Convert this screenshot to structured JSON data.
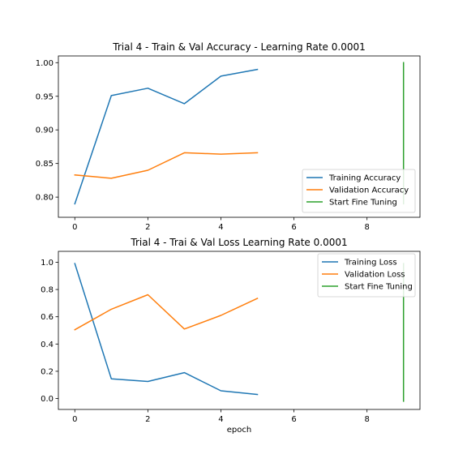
{
  "chart_data": [
    {
      "type": "line",
      "title": "Trial 4 - Train & Val Accuracy - Learning Rate 0.0001",
      "xlabel": "",
      "ylabel": "",
      "xlim": [
        -0.45,
        9.45
      ],
      "ylim": [
        0.77,
        1.01
      ],
      "xticks": [
        0,
        2,
        4,
        6,
        8
      ],
      "yticks": [
        0.8,
        0.85,
        0.9,
        0.95,
        1.0
      ],
      "ytick_labels": [
        "0.80",
        "0.85",
        "0.90",
        "0.95",
        "1.00"
      ],
      "grid": false,
      "legend_position": "lower right",
      "series": [
        {
          "name": "Training Accuracy",
          "color": "#1f77b4",
          "x": [
            0,
            1,
            2,
            3,
            4,
            5
          ],
          "y": [
            0.79,
            0.951,
            0.962,
            0.939,
            0.98,
            0.99
          ]
        },
        {
          "name": "Validation Accuracy",
          "color": "#ff7f0e",
          "x": [
            0,
            1,
            2,
            3,
            4,
            5
          ],
          "y": [
            0.833,
            0.828,
            0.84,
            0.866,
            0.864,
            0.866
          ]
        },
        {
          "name": "Start Fine Tuning",
          "color": "#2ca02c",
          "x": [
            9,
            9
          ],
          "y": [
            0.79,
            1.0
          ]
        }
      ]
    },
    {
      "type": "line",
      "title": "Trial 4 - Trai & Val Loss Learning Rate 0.0001",
      "xlabel": "epoch",
      "ylabel": "",
      "xlim": [
        -0.45,
        9.45
      ],
      "ylim": [
        -0.08,
        1.08
      ],
      "xticks": [
        0,
        2,
        4,
        6,
        8
      ],
      "yticks": [
        0.0,
        0.2,
        0.4,
        0.6,
        0.8,
        1.0
      ],
      "ytick_labels": [
        "0.0",
        "0.2",
        "0.4",
        "0.6",
        "0.8",
        "1.0"
      ],
      "grid": false,
      "legend_position": "upper right",
      "series": [
        {
          "name": "Training Loss",
          "color": "#1f77b4",
          "x": [
            0,
            1,
            2,
            3,
            4,
            5
          ],
          "y": [
            0.99,
            0.145,
            0.125,
            0.19,
            0.057,
            0.03
          ]
        },
        {
          "name": "Validation Loss",
          "color": "#ff7f0e",
          "x": [
            0,
            1,
            2,
            3,
            4,
            5
          ],
          "y": [
            0.505,
            0.655,
            0.762,
            0.51,
            0.61,
            0.735
          ]
        },
        {
          "name": "Start Fine Tuning",
          "color": "#2ca02c",
          "x": [
            9,
            9
          ],
          "y": [
            -0.02,
            0.99
          ]
        }
      ]
    }
  ]
}
